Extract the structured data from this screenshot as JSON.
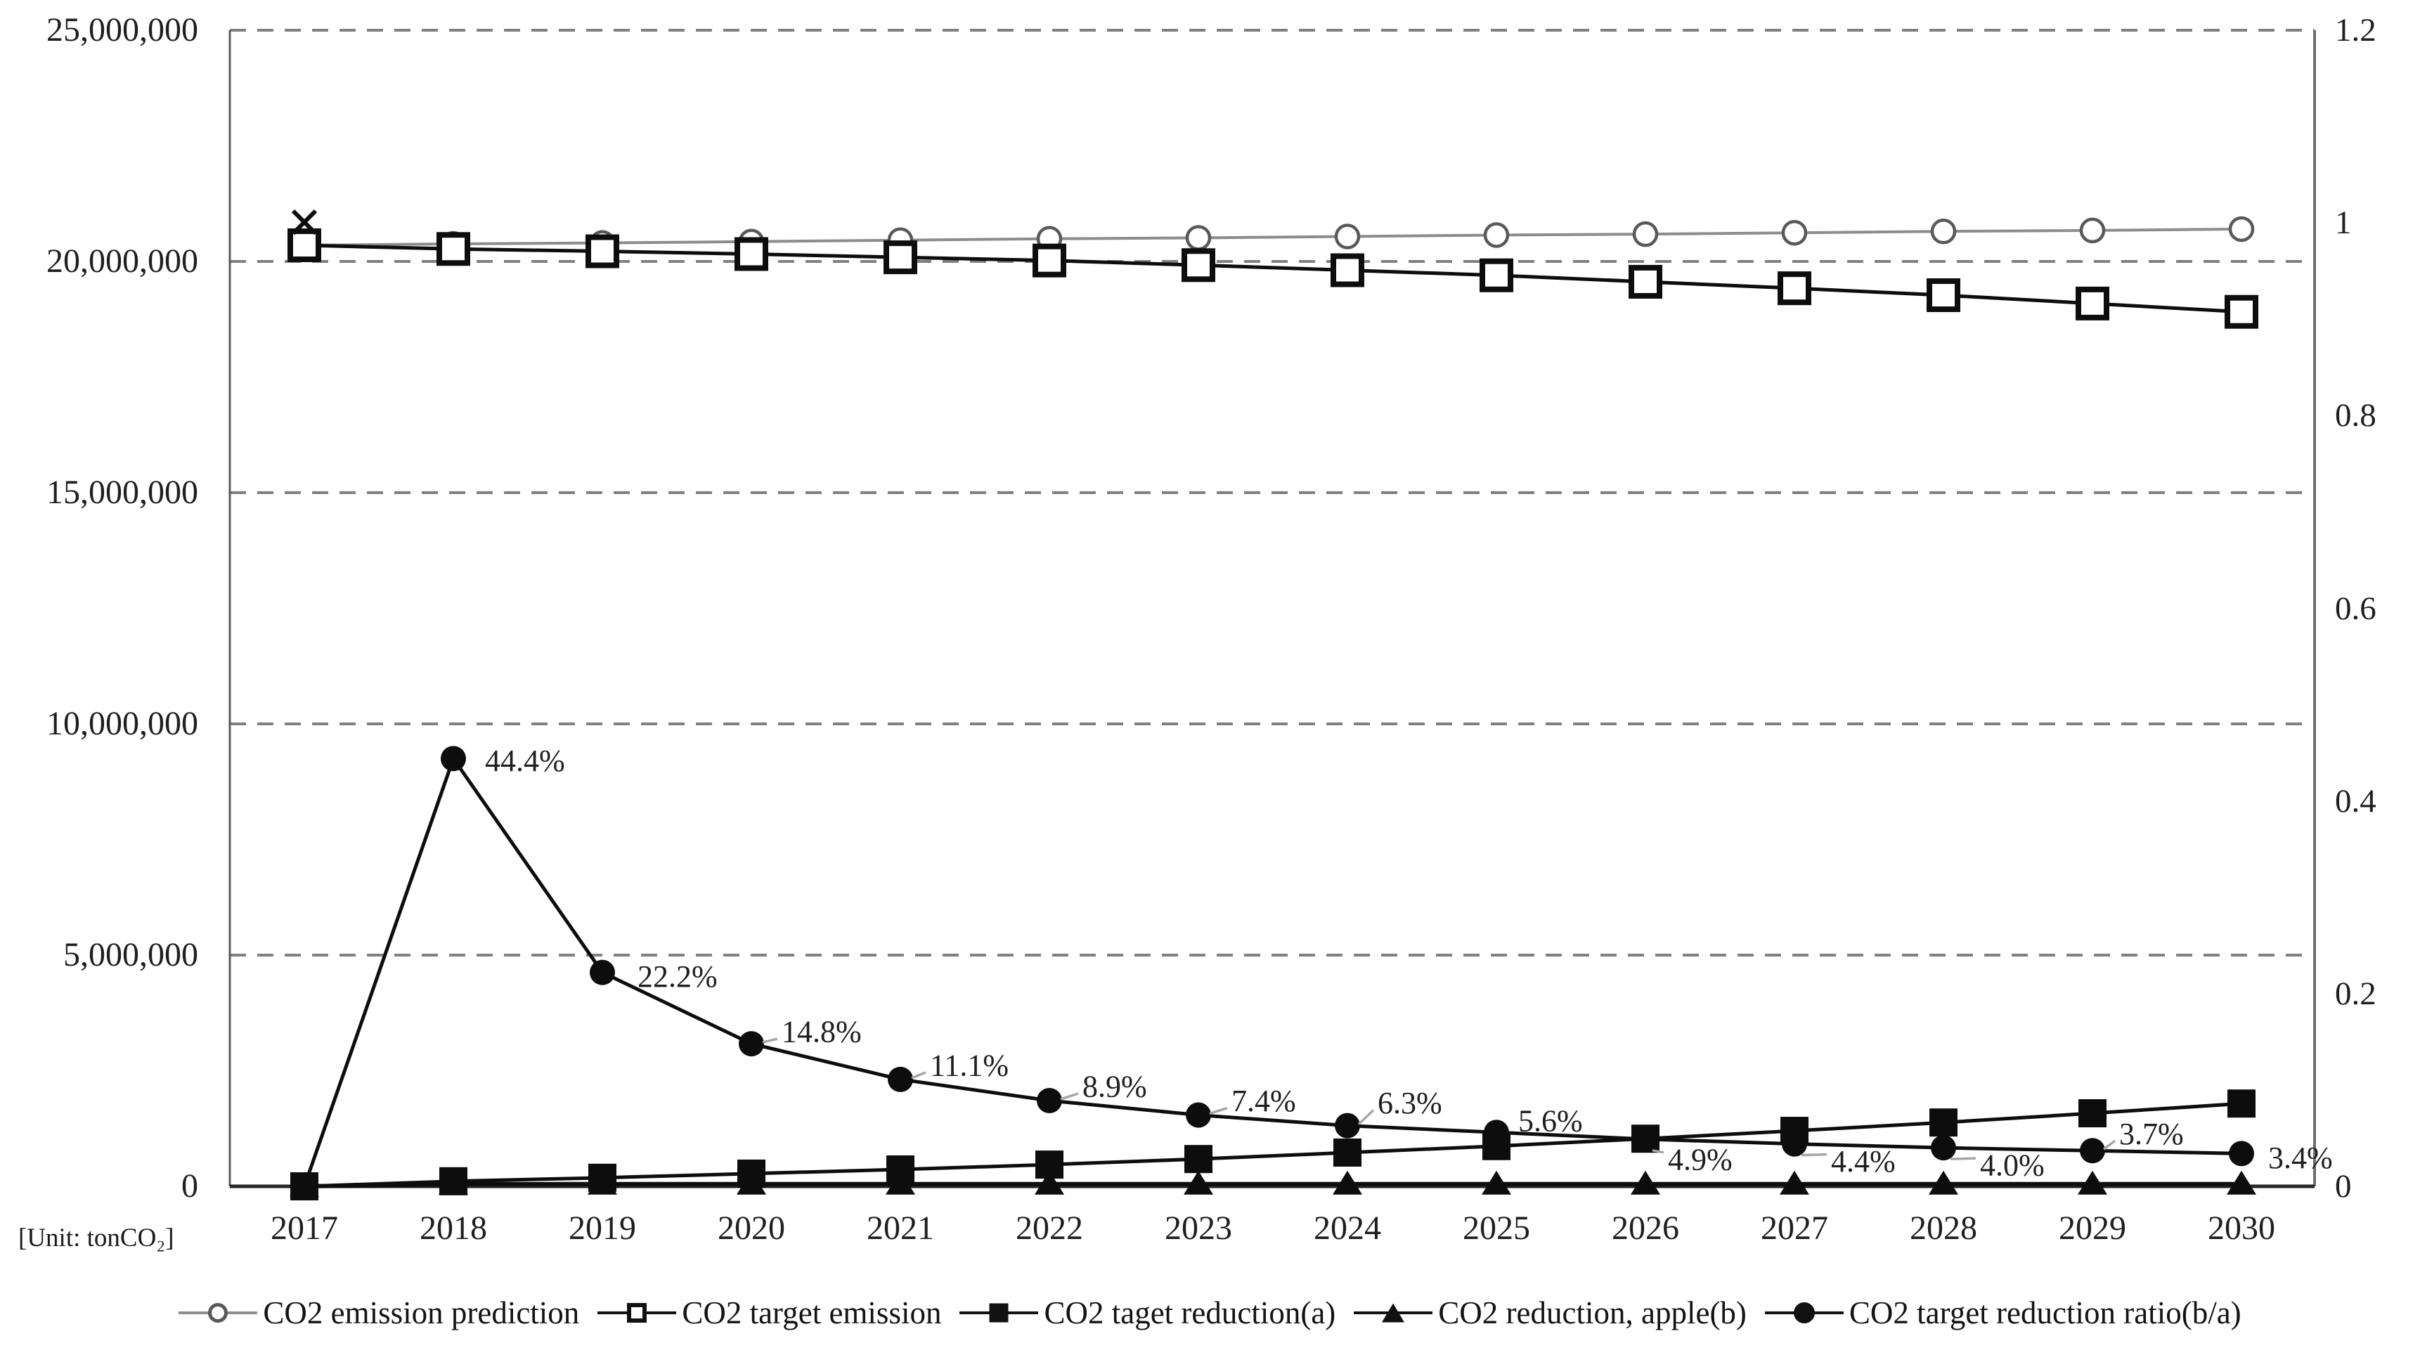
{
  "unit_label": "[Unit: tonCO₂]",
  "axes": {
    "left_tick_labels": [
      "25,000,000",
      "20,000,000",
      "15,000,000",
      "10,000,000",
      "5,000,000",
      "0"
    ],
    "left_tick_values": [
      25000000,
      20000000,
      15000000,
      10000000,
      5000000,
      0
    ],
    "right_tick_labels": [
      "1.2",
      "1",
      "0.8",
      "0.6",
      "0.4",
      "0.2",
      "0"
    ],
    "right_tick_values": [
      1.2,
      1,
      0.8,
      0.6,
      0.4,
      0.2,
      0
    ],
    "x_labels": [
      "2017",
      "2018",
      "2019",
      "2020",
      "2021",
      "2022",
      "2023",
      "2024",
      "2025",
      "2026",
      "2027",
      "2028",
      "2029",
      "2030"
    ]
  },
  "legend": {
    "position": "bottom",
    "items": [
      {
        "label": "CO2 emission prediction",
        "marker": "open-circle",
        "line_color": "#8c8c8c"
      },
      {
        "label": "CO2 target emission",
        "marker": "open-square",
        "line_color": "#111111"
      },
      {
        "label": "CO2 taget reduction(a)",
        "marker": "filled-square",
        "line_color": "#111111"
      },
      {
        "label": "CO2 reduction, apple(b)",
        "marker": "filled-triangle",
        "line_color": "#111111"
      },
      {
        "label": "CO2 target reduction ratio(b/a)",
        "marker": "filled-circle",
        "line_color": "#111111"
      }
    ]
  },
  "chart_data": {
    "type": "line",
    "categories": [
      "2017",
      "2018",
      "2019",
      "2020",
      "2021",
      "2022",
      "2023",
      "2024",
      "2025",
      "2026",
      "2027",
      "2028",
      "2029",
      "2030"
    ],
    "left_axis": {
      "unit": "tonCO2",
      "range": [
        0,
        25000000
      ],
      "grid": "dashed"
    },
    "right_axis": {
      "unit": "ratio",
      "range": [
        0,
        1.2
      ]
    },
    "series": [
      {
        "name": "CO2 emission prediction",
        "slug": "emission-prediction",
        "axis": "left",
        "marker": "open-circle",
        "color": "#8c8c8c",
        "values": [
          20350000,
          20380000,
          20400000,
          20430000,
          20460000,
          20490000,
          20510000,
          20540000,
          20570000,
          20590000,
          20620000,
          20650000,
          20670000,
          20700000
        ]
      },
      {
        "name": "CO2 target emission",
        "slug": "target-emission",
        "axis": "left",
        "marker": "open-square",
        "color": "#0d0d0d",
        "values": [
          20350000,
          20270000,
          20220000,
          20160000,
          20090000,
          20020000,
          19920000,
          19810000,
          19700000,
          19560000,
          19420000,
          19270000,
          19090000,
          18910000
        ]
      },
      {
        "name": "CO2 taget reduction(a)",
        "slug": "target-reduction-a",
        "axis": "left",
        "marker": "filled-square",
        "color": "#0d0d0d",
        "values": [
          0,
          110000,
          185000,
          275000,
          365000,
          470000,
          590000,
          730000,
          870000,
          1030000,
          1200000,
          1380000,
          1580000,
          1790000
        ]
      },
      {
        "name": "CO2 reduction, apple(b)",
        "slug": "reduction-apple-b",
        "axis": "left",
        "marker": "filled-triangle",
        "color": "#0d0d0d",
        "values": [
          0,
          50000,
          50000,
          50000,
          50000,
          50000,
          50000,
          50000,
          50000,
          50000,
          50000,
          50000,
          50000,
          50000
        ]
      },
      {
        "name": "CO2 target reduction ratio(b/a)",
        "slug": "reduction-ratio",
        "axis": "right",
        "marker": "filled-circle",
        "color": "#0d0d0d",
        "values": [
          0,
          0.444,
          0.222,
          0.148,
          0.111,
          0.089,
          0.074,
          0.063,
          0.056,
          0.049,
          0.044,
          0.04,
          0.037,
          0.034
        ],
        "point_labels": [
          "",
          "44.4%",
          "22.2%",
          "14.8%",
          "11.1%",
          "8.9%",
          "7.4%",
          "6.3%",
          "5.6%",
          "4.9%",
          "4.4%",
          "4.0%",
          "3.7%",
          "3.4%"
        ],
        "label_leader": [
          false,
          false,
          false,
          true,
          true,
          true,
          true,
          true,
          false,
          true,
          true,
          true,
          true,
          false
        ]
      }
    ],
    "extra_markers": [
      {
        "type": "x",
        "year": "2017",
        "axis": "left",
        "value": 20850000
      }
    ]
  }
}
